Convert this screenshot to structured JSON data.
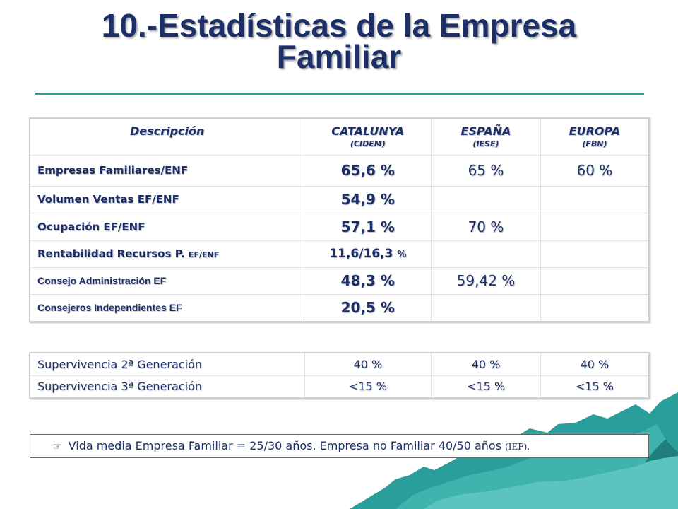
{
  "title": {
    "line1": "10.-Estadísticas de la Empresa",
    "line2": "Familiar"
  },
  "table_main": {
    "headers": [
      {
        "label": "Descripción",
        "sub": ""
      },
      {
        "label": "CATALUNYA",
        "sub": "(CIDEM)"
      },
      {
        "label": "ESPAÑA",
        "sub": "(IESE)"
      },
      {
        "label": "EUROPA",
        "sub": "(FBN)"
      }
    ],
    "rows": [
      {
        "desc": "Empresas Familiares/ENF",
        "catalunya": "65,6 %",
        "espana": "65 %",
        "europa": "60 %"
      },
      {
        "desc": "Volumen Ventas EF/ENF",
        "catalunya": "54,9 %",
        "espana": "",
        "europa": ""
      },
      {
        "desc": "Ocupación EF/ENF",
        "catalunya": "57,1 %",
        "espana": "70 %",
        "europa": ""
      },
      {
        "desc_main": "Rentabilidad Recursos P.",
        "desc_small": "EF/ENF",
        "catalunya_main": "11,6/16,3",
        "catalunya_small": "%",
        "espana": "",
        "europa": ""
      },
      {
        "desc": "Consejo Administración EF",
        "catalunya": "48,3 %",
        "espana": "59,42 %",
        "europa": ""
      },
      {
        "desc": "Consejeros Independientes EF",
        "catalunya": "20,5 %",
        "espana": "",
        "europa": ""
      }
    ]
  },
  "table_survival": {
    "rows": [
      {
        "desc": "Supervivencia 2ª Generación",
        "catalunya": "40 %",
        "espana": "40 %",
        "europa": "40 %"
      },
      {
        "desc": "Supervivencia 3ª Generación",
        "catalunya": "<15 %",
        "espana": "<15 %",
        "europa": "<15 %"
      }
    ]
  },
  "note": {
    "icon": "pointing-hand-icon",
    "text": "Vida media Empresa Familiar = 25/30 años. Empresa no Familiar 40/50 años",
    "source": "(IEF)."
  },
  "colors": {
    "title": "#1c2f68",
    "rule": "#2b9a9a",
    "mountain": "#2a9e9a"
  }
}
